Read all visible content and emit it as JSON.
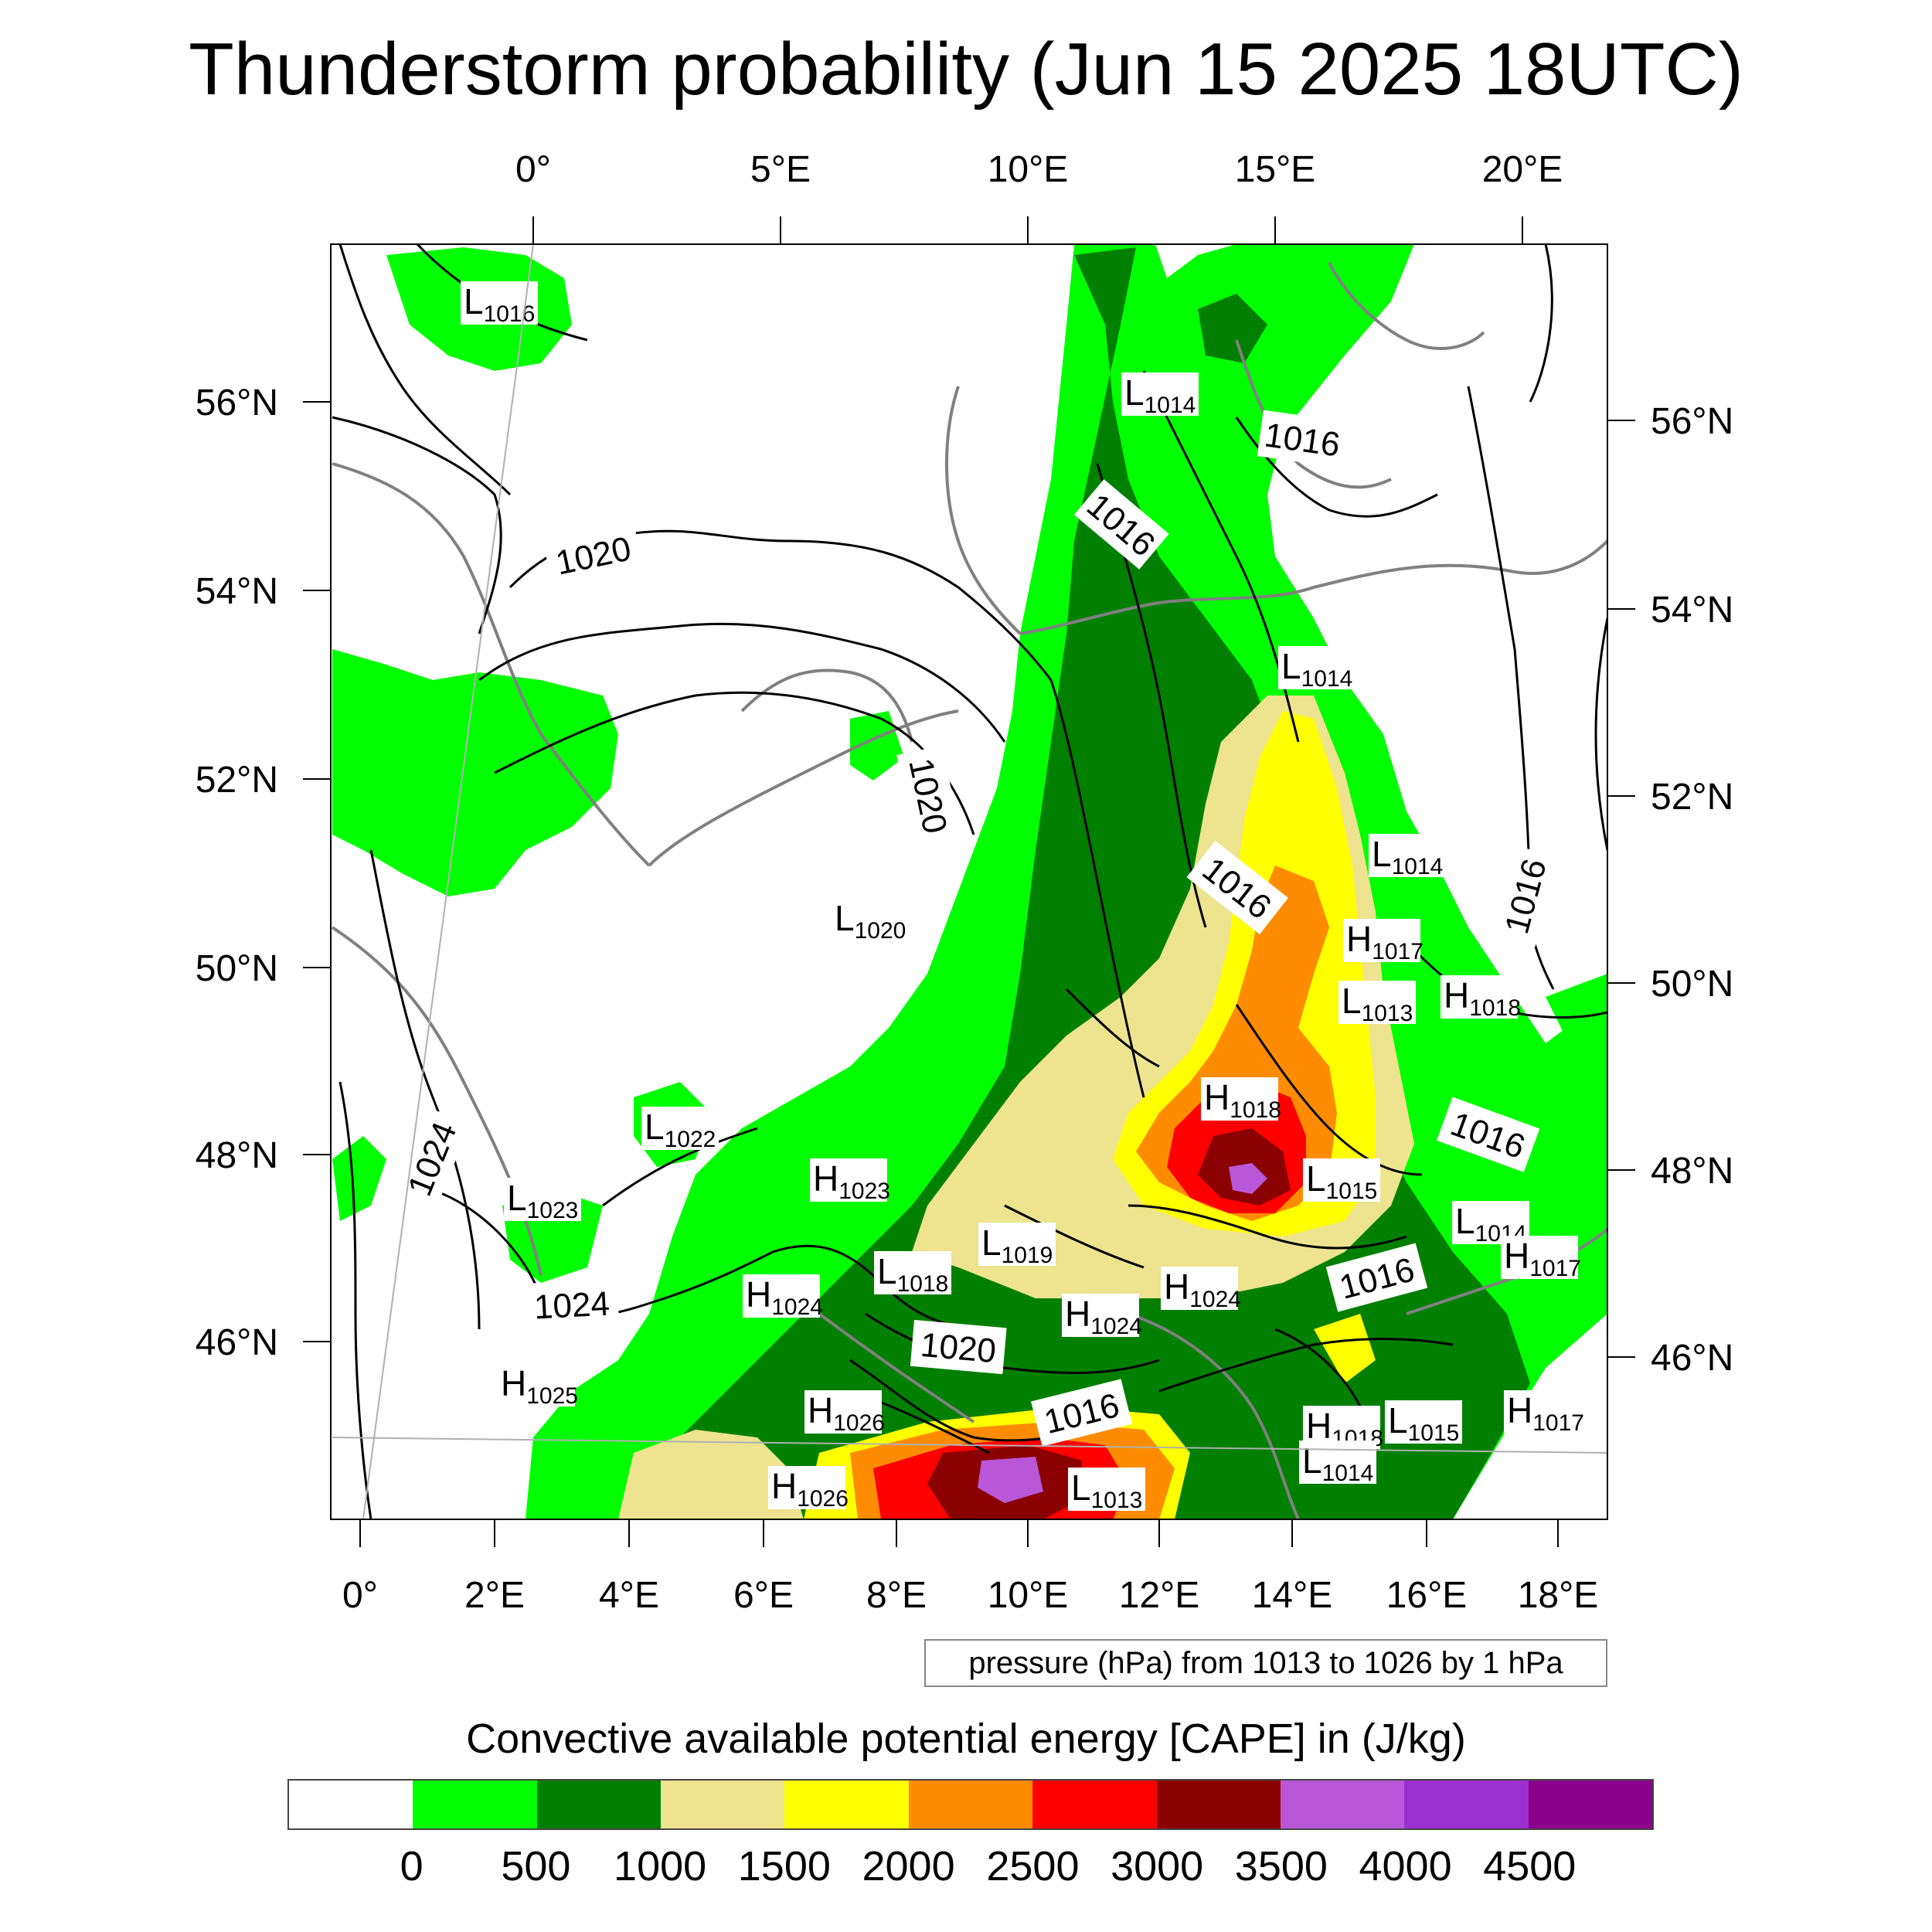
{
  "title": "Thunderstorm probability (Jun 15 2025 18UTC)",
  "axes": {
    "top_lon": [
      "0°",
      "5°E",
      "10°E",
      "15°E",
      "20°E"
    ],
    "bottom_lon": [
      "0°",
      "2°E",
      "4°E",
      "6°E",
      "8°E",
      "10°E",
      "12°E",
      "14°E",
      "16°E",
      "18°E"
    ],
    "left_lat": [
      "56°N",
      "54°N",
      "52°N",
      "50°N",
      "48°N",
      "46°N"
    ],
    "right_lat": [
      "56°N",
      "54°N",
      "52°N",
      "50°N",
      "48°N",
      "46°N"
    ]
  },
  "pressure_note": "pressure (hPa) from 1013 to 1026 by 1 hPa",
  "colorbar": {
    "title": "Convective available potential energy [CAPE] in (J/kg)",
    "colors": [
      "#ffffff",
      "#00ff00",
      "#007f00",
      "#eee38f",
      "#ffff00",
      "#ff8c00",
      "#ff0000",
      "#8b0000",
      "#b957d8",
      "#9b30d0",
      "#8b008b"
    ],
    "ticks": [
      "0",
      "500",
      "1000",
      "1500",
      "2000",
      "2500",
      "3000",
      "3500",
      "4000",
      "4500"
    ]
  },
  "pressure_centers": [
    {
      "type": "L",
      "value": "1016"
    },
    {
      "type": "L",
      "value": "1014"
    },
    {
      "type": "L",
      "value": "1014"
    },
    {
      "type": "L",
      "value": "1014"
    },
    {
      "type": "L",
      "value": "1020"
    },
    {
      "type": "H",
      "value": "1017"
    },
    {
      "type": "L",
      "value": "1013"
    },
    {
      "type": "H",
      "value": "1018"
    },
    {
      "type": "H",
      "value": "1018"
    },
    {
      "type": "L",
      "value": "1022"
    },
    {
      "type": "L",
      "value": "1023"
    },
    {
      "type": "H",
      "value": "1023"
    },
    {
      "type": "L",
      "value": "1019"
    },
    {
      "type": "L",
      "value": "1018"
    },
    {
      "type": "H",
      "value": "1024"
    },
    {
      "type": "H",
      "value": "1024"
    },
    {
      "type": "H",
      "value": "1024"
    },
    {
      "type": "L",
      "value": "1015"
    },
    {
      "type": "L",
      "value": "1014"
    },
    {
      "type": "H",
      "value": "1017"
    },
    {
      "type": "H",
      "value": "1025"
    },
    {
      "type": "H",
      "value": "1026"
    },
    {
      "type": "H",
      "value": "1026"
    },
    {
      "type": "L",
      "value": "1013"
    },
    {
      "type": "H",
      "value": "1018"
    },
    {
      "type": "L",
      "value": "1015"
    },
    {
      "type": "L",
      "value": "1014"
    },
    {
      "type": "H",
      "value": "1017"
    }
  ],
  "isobar_labels": [
    "1016",
    "1016",
    "1020",
    "1020",
    "1016",
    "1016",
    "1016",
    "1024",
    "1024",
    "1020",
    "1016",
    "1016"
  ]
}
